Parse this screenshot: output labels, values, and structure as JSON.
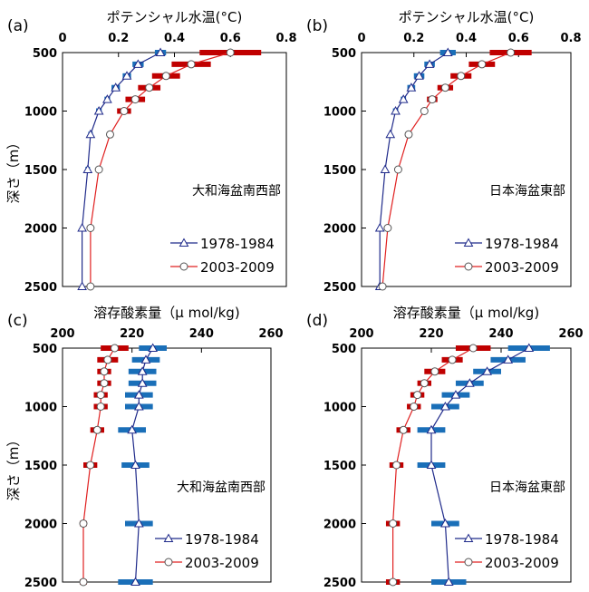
{
  "y_axis_title": "深さ（m）",
  "chart_data": [
    {
      "type": "line",
      "panel_label": "(a)",
      "title": "ポテンシャル水温(°C)",
      "region": "大和海盆南西部",
      "x_ticks": [
        "0",
        "0.2",
        "0.4",
        "0.6",
        "0.8"
      ],
      "y_ticks": [
        "500",
        "1000",
        "1500",
        "2000",
        "2500"
      ],
      "xlim": [
        0,
        0.8
      ],
      "ylim": [
        500,
        2500
      ],
      "y_reversed": true,
      "depths": [
        500,
        600,
        700,
        800,
        900,
        1000,
        1200,
        1500,
        2000,
        2500
      ],
      "series": [
        {
          "name": "1978-1984",
          "color": "#1f2a8a",
          "err_color": "#1a6fb8",
          "marker": "triangle",
          "values": [
            0.35,
            0.27,
            0.23,
            0.19,
            0.16,
            0.13,
            0.1,
            0.09,
            0.07,
            0.07
          ],
          "errors": [
            0.02,
            0.02,
            0.015,
            0.015,
            0.01,
            0.01,
            0.008,
            0.008,
            0.005,
            0.005
          ]
        },
        {
          "name": "2003-2009",
          "color": "#e02020",
          "err_color": "#c00000",
          "marker": "circle",
          "values": [
            0.6,
            0.46,
            0.37,
            0.31,
            0.26,
            0.22,
            0.17,
            0.13,
            0.1,
            0.1
          ],
          "errors": [
            0.11,
            0.07,
            0.05,
            0.04,
            0.035,
            0.025,
            0.01,
            0.005,
            0.005,
            0.005
          ]
        }
      ]
    },
    {
      "type": "line",
      "panel_label": "(b)",
      "title": "ポテンシャル水温(°C)",
      "region": "日本海盆東部",
      "x_ticks": [
        "0",
        "0.2",
        "0.4",
        "0.6",
        "0.8"
      ],
      "y_ticks": [
        "500",
        "1000",
        "1500",
        "2000",
        "2500"
      ],
      "xlim": [
        0,
        0.8
      ],
      "ylim": [
        500,
        2500
      ],
      "y_reversed": true,
      "depths": [
        500,
        600,
        700,
        800,
        900,
        1000,
        1200,
        1500,
        2000,
        2500
      ],
      "series": [
        {
          "name": "1978-1984",
          "color": "#1f2a8a",
          "err_color": "#1a6fb8",
          "marker": "triangle",
          "values": [
            0.33,
            0.26,
            0.22,
            0.19,
            0.16,
            0.13,
            0.11,
            0.09,
            0.07,
            0.07
          ],
          "errors": [
            0.03,
            0.02,
            0.02,
            0.015,
            0.01,
            0.01,
            0.005,
            0.005,
            0.005,
            0.005
          ]
        },
        {
          "name": "2003-2009",
          "color": "#e02020",
          "err_color": "#c00000",
          "marker": "circle",
          "values": [
            0.57,
            0.46,
            0.38,
            0.32,
            0.27,
            0.24,
            0.18,
            0.14,
            0.1,
            0.08
          ],
          "errors": [
            0.08,
            0.05,
            0.04,
            0.03,
            0.02,
            0.01,
            0.005,
            0.005,
            0.005,
            0.005
          ]
        }
      ]
    },
    {
      "type": "line",
      "panel_label": "(c)",
      "title": "溶存酸素量（μ mol/kg)",
      "region": "大和海盆南西部",
      "x_ticks": [
        "200",
        "220",
        "240",
        "260"
      ],
      "y_ticks": [
        "500",
        "1000",
        "1500",
        "2000",
        "2500"
      ],
      "xlim": [
        200,
        260
      ],
      "ylim": [
        500,
        2500
      ],
      "y_reversed": true,
      "depths": [
        500,
        600,
        700,
        800,
        900,
        1000,
        1200,
        1500,
        2000,
        2500
      ],
      "series": [
        {
          "name": "1978-1984",
          "color": "#1f2a8a",
          "err_color": "#1a6fb8",
          "marker": "triangle",
          "values": [
            226,
            224,
            223,
            223,
            222,
            222,
            220,
            221,
            222,
            221
          ],
          "errors": [
            4,
            4,
            4,
            4,
            4,
            4,
            4,
            4,
            4,
            5
          ]
        },
        {
          "name": "2003-2009",
          "color": "#e02020",
          "err_color": "#c00000",
          "marker": "circle",
          "values": [
            215,
            213,
            212,
            212,
            211,
            211,
            210,
            208,
            206,
            206
          ],
          "errors": [
            4,
            3,
            2,
            2,
            2,
            2,
            2,
            2,
            1,
            1
          ]
        }
      ]
    },
    {
      "type": "line",
      "panel_label": "(d)",
      "title": "溶存酸素量（μ mol/kg)",
      "region": "日本海盆東部",
      "x_ticks": [
        "200",
        "220",
        "240",
        "260"
      ],
      "y_ticks": [
        "500",
        "1000",
        "1500",
        "2000",
        "2500"
      ],
      "xlim": [
        200,
        260
      ],
      "ylim": [
        500,
        2500
      ],
      "y_reversed": true,
      "depths": [
        500,
        600,
        700,
        800,
        900,
        1000,
        1200,
        1500,
        2000,
        2500
      ],
      "series": [
        {
          "name": "1978-1984",
          "color": "#1f2a8a",
          "err_color": "#1a6fb8",
          "marker": "triangle",
          "values": [
            248,
            242,
            236,
            231,
            227,
            224,
            220,
            220,
            224,
            225
          ],
          "errors": [
            6,
            5,
            4,
            4,
            4,
            4,
            4,
            4,
            4,
            5
          ]
        },
        {
          "name": "2003-2009",
          "color": "#e02020",
          "err_color": "#c00000",
          "marker": "circle",
          "values": [
            232,
            226,
            221,
            218,
            216,
            215,
            212,
            210,
            209,
            209
          ],
          "errors": [
            5,
            3,
            3,
            2,
            2,
            2,
            2,
            2,
            2,
            2
          ]
        }
      ]
    }
  ]
}
